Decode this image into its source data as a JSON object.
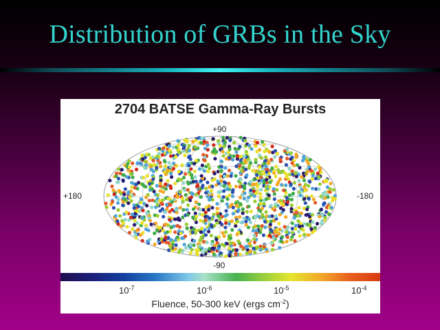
{
  "slide": {
    "title": "Distribution of GRBs in the Sky"
  },
  "figure": {
    "title": "2704 BATSE Gamma-Ray Bursts",
    "axis_labels": {
      "north": "+90",
      "south": "-90",
      "west": "+180",
      "east": "-180"
    },
    "colorbar": {
      "ticks": [
        {
          "base": "10",
          "exp": "-7"
        },
        {
          "base": "10",
          "exp": "-6"
        },
        {
          "base": "10",
          "exp": "-5"
        },
        {
          "base": "10",
          "exp": "-4"
        }
      ],
      "label_prefix": "Fluence, 50-300 keV (ergs cm",
      "label_exp": "-2",
      "label_suffix": ")"
    },
    "point_palette": [
      "#2b1a6e",
      "#2a4db0",
      "#4fa3d8",
      "#8fd6c9",
      "#3eaa48",
      "#9acd32",
      "#e8e02a",
      "#f5a623",
      "#e2572b",
      "#d1281a"
    ]
  }
}
